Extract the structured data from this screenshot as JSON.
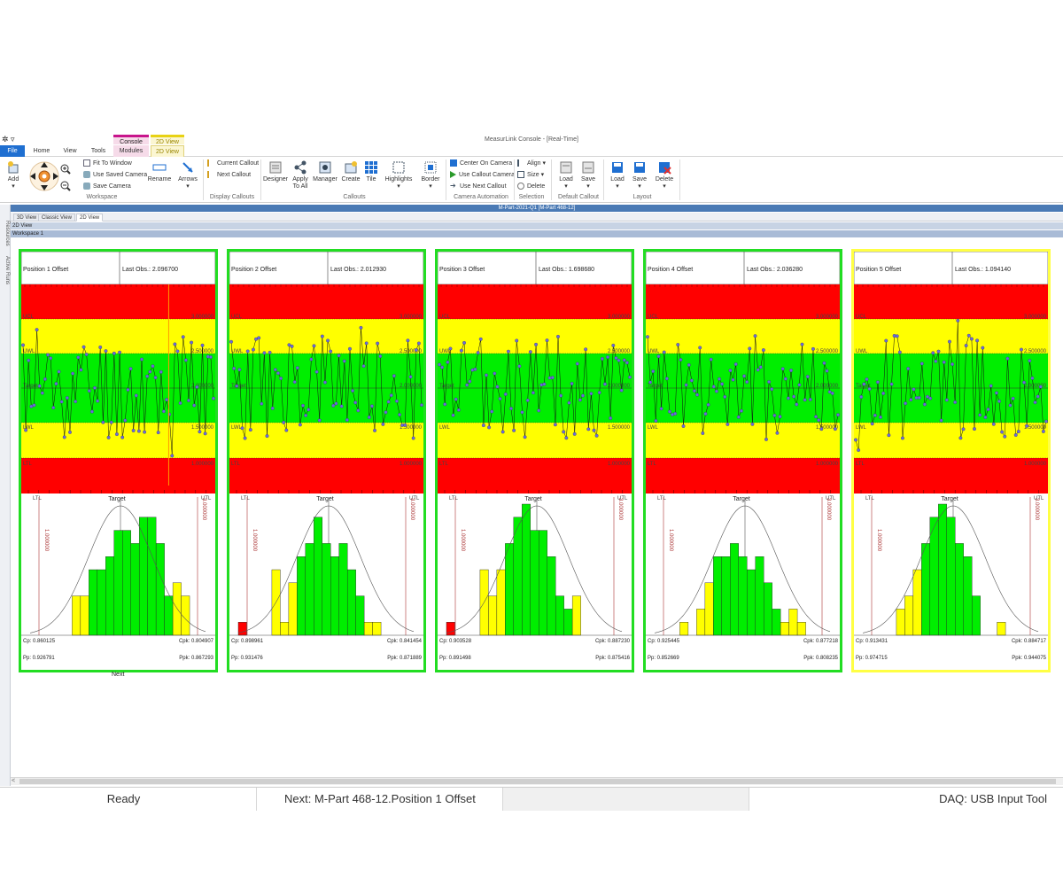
{
  "window": {
    "title": "MeasurLink Console - [Real-Time]",
    "qat": "✲ ▿"
  },
  "context_tabs": {
    "console": "Console",
    "modules": "Modules",
    "view2d": "2D View"
  },
  "tabs": [
    "File",
    "Home",
    "View",
    "Tools",
    "Modules",
    "2D View"
  ],
  "ribbon": {
    "add": "Add",
    "fit": "Fit To Window",
    "saved_cam": "Use Saved Camera",
    "save_cam": "Save Camera",
    "rename": "Rename",
    "arrows": "Arrows",
    "workspace_grp": "Workspace",
    "current_callout": "Current Callout",
    "next_callout": "Next Callout",
    "display_grp": "Display Callouts",
    "designer": "Designer",
    "apply": "Apply",
    "apply2": "To All",
    "manager": "Manager",
    "create": "Create",
    "tile": "Tile",
    "highlights": "Highlights",
    "border": "Border",
    "callouts_grp": "Callouts",
    "center_cam": "Center On Camera",
    "callout_cam": "Use Callout Camera",
    "use_next": "Use Next Callout",
    "camera_grp": "Camera Automation",
    "align": "Align",
    "size": "Size",
    "delete_sel": "Delete",
    "selection_grp": "Selection",
    "load1": "Load",
    "save1": "Save",
    "default_grp": "Default Callout",
    "load2": "Load",
    "save2": "Save",
    "delete2": "Delete",
    "layout_grp": "Layout"
  },
  "doc_title": "M-Part-2021-Q1 [M-Part 468-12]",
  "view_tabs": [
    "3D View",
    "Classic View",
    "2D View"
  ],
  "bar_2d": "2D View",
  "bar_ws": "Workspace 1",
  "left_tabs": {
    "resources": "Resources",
    "active_runs": "Active Runs"
  },
  "next_label": "Next",
  "zone_labels": {
    "ucl": "UCL",
    "uwl": "UWL",
    "target": "Target",
    "lwl": "LWL",
    "ltl": "LTL",
    "utl": "UTL"
  },
  "axis_values": {
    "v3": "3.000000",
    "v25": "2.500000",
    "v2": "2.000000",
    "v15": "1.500000",
    "v1": "1.000000"
  },
  "colors": {
    "red": "#ff0000",
    "yellow": "#ffff00",
    "green": "#00ee00",
    "panel_ok": "#22dd22",
    "panel_warn": "#ffff44",
    "accent": "#1f6fd1"
  },
  "panels": [
    {
      "name": "Position 1 Offset",
      "last_obs": "Last Obs.: 2.096700",
      "status": "ok",
      "cp": "Cp: 0.860125",
      "cpk": "Cpk: 0.804907",
      "pp": "Pp: 0.926791",
      "ppk": "Ppk: 0.867293",
      "hist": [
        0,
        0,
        0,
        0,
        0,
        3,
        3,
        5,
        5,
        6,
        8,
        8,
        7,
        9,
        9,
        7,
        3,
        4,
        3,
        0,
        0
      ],
      "hist_colors": "yyyyyyyggggggggggyyyy",
      "cursor": 0.76,
      "series_seed": 11
    },
    {
      "name": "Position 2 Offset",
      "last_obs": "Last Obs.: 2.012930",
      "status": "ok",
      "cp": "Cp: 0.898961",
      "cpk": "Cpk: 0.841454",
      "pp": "Pp: 0.931476",
      "ppk": "Ppk: 0.871889",
      "hist": [
        1,
        0,
        0,
        0,
        5,
        1,
        4,
        6,
        7,
        9,
        7,
        6,
        7,
        5,
        3,
        1,
        1,
        0,
        0,
        0,
        0
      ],
      "hist_colors": "rrryyyyggggggggyyyyyy",
      "cursor": -1,
      "series_seed": 23
    },
    {
      "name": "Position 3 Offset",
      "last_obs": "Last Obs.: 1.698680",
      "status": "ok",
      "cp": "Cp: 0.903528",
      "cpk": "Cpk: 0.887230",
      "pp": "Pp: 0.891498",
      "ppk": "Ppk: 0.875416",
      "hist": [
        1,
        0,
        0,
        0,
        5,
        3,
        5,
        7,
        9,
        10,
        8,
        8,
        6,
        3,
        2,
        3,
        0,
        0,
        0,
        0,
        0
      ],
      "hist_colors": "rrryyyyggggggggyyyyyy",
      "cursor": -1,
      "series_seed": 37
    },
    {
      "name": "Position 4 Offset",
      "last_obs": "Last Obs.: 2.036280",
      "status": "ok",
      "cp": "Cp: 0.925445",
      "cpk": "Cpk: 0.877218",
      "pp": "Pp: 0.852669",
      "ppk": "Ppk: 0.808235",
      "hist": [
        0,
        0,
        0,
        1,
        0,
        2,
        4,
        6,
        6,
        7,
        6,
        5,
        6,
        4,
        2,
        1,
        2,
        1,
        0,
        0,
        0
      ],
      "hist_colors": "yyyyyyyggggggggyyyyrr",
      "cursor": -1,
      "series_seed": 41
    },
    {
      "name": "Position 5 Offset",
      "last_obs": "Last Obs.: 1.094140",
      "status": "warn",
      "cp": "Cp: 0.913431",
      "cpk": "Cpk: 0.884717",
      "pp": "Pp: 0.974715",
      "ppk": "Ppk: 0.944075",
      "hist": [
        0,
        0,
        0,
        0,
        2,
        3,
        5,
        7,
        9,
        10,
        9,
        7,
        6,
        3,
        0,
        0,
        1,
        0,
        0,
        0,
        0
      ],
      "hist_colors": "yyyyyyyggggggggyyyrrr",
      "cursor": -1,
      "series_seed": 53
    }
  ],
  "status": {
    "ready": "Ready",
    "next": "Next: M-Part 468-12.Position 1 Offset",
    "daq": "DAQ: USB Input Tool"
  }
}
